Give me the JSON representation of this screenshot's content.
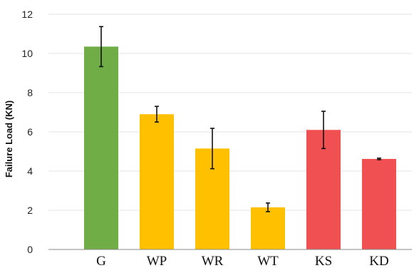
{
  "chart_data": {
    "type": "bar",
    "categories": [
      "G",
      "WP",
      "WR",
      "WT",
      "KS",
      "KD"
    ],
    "values": [
      10.35,
      6.9,
      5.15,
      2.15,
      6.1,
      4.62
    ],
    "error": [
      1.02,
      0.4,
      1.03,
      0.22,
      0.95,
      0.04
    ],
    "colors": [
      "#70ad47",
      "#ffc000",
      "#ffc000",
      "#ffc000",
      "#f15052",
      "#f15052"
    ],
    "ylabel": "Failure Load (KN)",
    "xlabel": "",
    "title": "",
    "ylim": [
      0,
      12
    ],
    "yticks": [
      "0",
      "2",
      "4",
      "6",
      "8",
      "10",
      "12"
    ],
    "grid": true
  }
}
